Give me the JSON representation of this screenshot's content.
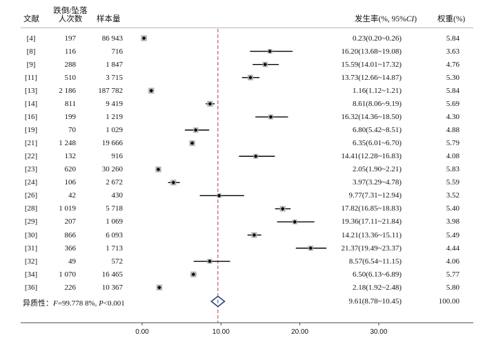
{
  "headers": {
    "study": "文献",
    "events_line1": "跌倒/坠落",
    "events_line2": "人次数",
    "sample": "样本量",
    "rate_prefix": "发生率(%, 95%",
    "rate_ci": "CI",
    "rate_suffix": ")",
    "weight": "权重(%)"
  },
  "heterogeneity": {
    "prefix": "异质性：",
    "f_symbol": "F",
    "f_value": "=99.778 8%",
    "sep": ", ",
    "p_symbol": "P",
    "p_value": "<0.001"
  },
  "chart_data": {
    "type": "forest",
    "xlim": [
      -5,
      35
    ],
    "xticks": [
      0,
      10,
      20,
      30
    ],
    "xtick_labels": [
      "0.00",
      "10.00",
      "20.00",
      "30.00"
    ],
    "reference_line": 9.61,
    "studies": [
      {
        "ref": "[4]",
        "events": "197",
        "n": "86 943",
        "rate": 0.23,
        "lo": 0.2,
        "hi": 0.26,
        "ci_text": "0.23(0.20~0.26)",
        "weight": "5.84"
      },
      {
        "ref": "[8]",
        "events": "116",
        "n": "716",
        "rate": 16.2,
        "lo": 13.68,
        "hi": 19.08,
        "ci_text": "16.20(13.68~19.08)",
        "weight": "3.63"
      },
      {
        "ref": "[9]",
        "events": "288",
        "n": "1 847",
        "rate": 15.59,
        "lo": 14.01,
        "hi": 17.32,
        "ci_text": "15.59(14.01~17.32)",
        "weight": "4.76"
      },
      {
        "ref": "[11]",
        "events": "510",
        "n": "3 715",
        "rate": 13.73,
        "lo": 12.66,
        "hi": 14.87,
        "ci_text": "13.73(12.66~14.87)",
        "weight": "5.30"
      },
      {
        "ref": "[13]",
        "events": "2 186",
        "n": "187 782",
        "rate": 1.16,
        "lo": 1.12,
        "hi": 1.21,
        "ci_text": "1.16(1.12~1.21)",
        "weight": "5.84"
      },
      {
        "ref": "[14]",
        "events": "811",
        "n": "9 419",
        "rate": 8.61,
        "lo": 8.06,
        "hi": 9.19,
        "ci_text": "8.61(8.06~9.19)",
        "weight": "5.69"
      },
      {
        "ref": "[16]",
        "events": "199",
        "n": "1 219",
        "rate": 16.32,
        "lo": 14.36,
        "hi": 18.5,
        "ci_text": "16.32(14.36~18.50)",
        "weight": "4.30"
      },
      {
        "ref": "[19]",
        "events": "70",
        "n": "1 029",
        "rate": 6.8,
        "lo": 5.42,
        "hi": 8.51,
        "ci_text": "6.80(5.42~8.51)",
        "weight": "4.88"
      },
      {
        "ref": "[21]",
        "events": "1 248",
        "n": "19 666",
        "rate": 6.35,
        "lo": 6.01,
        "hi": 6.7,
        "ci_text": "6.35(6.01~6.70)",
        "weight": "5.79"
      },
      {
        "ref": "[22]",
        "events": "132",
        "n": "916",
        "rate": 14.41,
        "lo": 12.28,
        "hi": 16.83,
        "ci_text": "14.41(12.28~16.83)",
        "weight": "4.08"
      },
      {
        "ref": "[23]",
        "events": "620",
        "n": "30 260",
        "rate": 2.05,
        "lo": 1.9,
        "hi": 2.21,
        "ci_text": "2.05(1.90~2.21)",
        "weight": "5.83"
      },
      {
        "ref": "[24]",
        "events": "106",
        "n": "2 672",
        "rate": 3.97,
        "lo": 3.29,
        "hi": 4.78,
        "ci_text": "3.97(3.29~4.78)",
        "weight": "5.59"
      },
      {
        "ref": "[26]",
        "events": "42",
        "n": "430",
        "rate": 9.77,
        "lo": 7.31,
        "hi": 12.94,
        "ci_text": "9.77(7.31~12.94)",
        "weight": "3.52"
      },
      {
        "ref": "[28]",
        "events": "1 019",
        "n": "5 718",
        "rate": 17.82,
        "lo": 16.85,
        "hi": 18.83,
        "ci_text": "17.82(16.85~18.83)",
        "weight": "5.40"
      },
      {
        "ref": "[29]",
        "events": "207",
        "n": "1 069",
        "rate": 19.36,
        "lo": 17.11,
        "hi": 21.84,
        "ci_text": "19.36(17.11~21.84)",
        "weight": "3.98"
      },
      {
        "ref": "[30]",
        "events": "866",
        "n": "6 093",
        "rate": 14.21,
        "lo": 13.36,
        "hi": 15.11,
        "ci_text": "14.21(13.36~15.11)",
        "weight": "5.49"
      },
      {
        "ref": "[31]",
        "events": "366",
        "n": "1 713",
        "rate": 21.37,
        "lo": 19.49,
        "hi": 23.37,
        "ci_text": "21.37(19.49~23.37)",
        "weight": "4.44"
      },
      {
        "ref": "[32]",
        "events": "49",
        "n": "572",
        "rate": 8.57,
        "lo": 6.54,
        "hi": 11.15,
        "ci_text": "8.57(6.54~11.15)",
        "weight": "4.06"
      },
      {
        "ref": "[34]",
        "events": "1 070",
        "n": "16 465",
        "rate": 6.5,
        "lo": 6.13,
        "hi": 6.89,
        "ci_text": "6.50(6.13~6.89)",
        "weight": "5.77"
      },
      {
        "ref": "[36]",
        "events": "226",
        "n": "10 367",
        "rate": 2.18,
        "lo": 1.92,
        "hi": 2.48,
        "ci_text": "2.18(1.92~2.48)",
        "weight": "5.80"
      }
    ],
    "pooled": {
      "rate": 9.61,
      "lo": 8.78,
      "hi": 10.45,
      "ci_text": "9.61(8.78~10.45)",
      "weight": "100.00"
    }
  },
  "colors": {
    "text": "#111111",
    "rule": "#b8b8b8",
    "marker_box": "#b3b3b3",
    "marker_point": "#000000",
    "ci_line": "#000000",
    "reference_line": "#b03a48",
    "pooled_diamond": "#2b3f7a",
    "axis": "#444444"
  }
}
